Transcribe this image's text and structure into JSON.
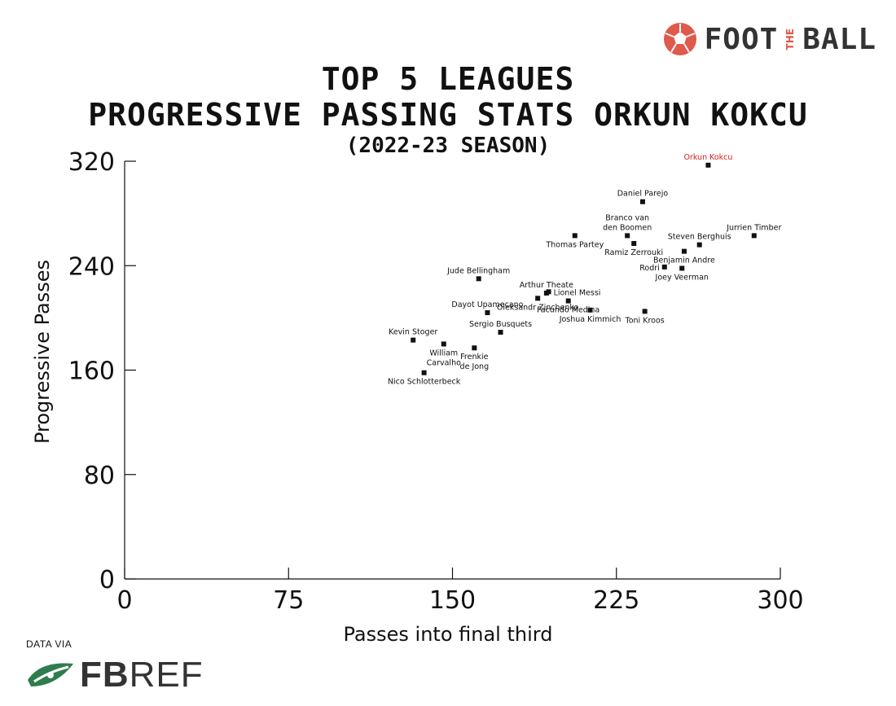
{
  "brand": {
    "name_left": "FOOT",
    "name_mid": "THE",
    "name_right": "BALL",
    "accent_color": "#e0594a",
    "icon": "football-icon"
  },
  "source": {
    "label": "DATA VIA",
    "logo_bold": "FB",
    "logo_light": "REF",
    "icon": "fbref-leaf-icon",
    "color": "#2e7d4f"
  },
  "chart_data": {
    "type": "scatter",
    "title": "TOP 5 LEAGUES",
    "title_line2": "PROGRESSIVE PASSING STATS ORKUN KOKCU",
    "subtitle": "(2022-23 SEASON)",
    "xlabel": "Passes into final third",
    "ylabel": "Progressive Passes",
    "xlim": [
      0,
      300
    ],
    "ylim": [
      0,
      320
    ],
    "xticks": [
      0,
      75,
      150,
      225,
      300
    ],
    "yticks": [
      0,
      80,
      160,
      240,
      320
    ],
    "grid": false,
    "highlight_color": "#d62020",
    "point_color": "#111111",
    "points": [
      {
        "name": "Orkun Kokcu",
        "x": 267,
        "y": 317,
        "highlight": true,
        "label_pos": "top"
      },
      {
        "name": "Daniel Parejo",
        "x": 237,
        "y": 289,
        "label_pos": "top"
      },
      {
        "name": "Branco van den Boomen",
        "lines": [
          "Branco van",
          "den Boomen"
        ],
        "x": 230,
        "y": 263,
        "label_pos": "top"
      },
      {
        "name": "Thomas Partey",
        "x": 206,
        "y": 263,
        "label_pos": "bottom"
      },
      {
        "name": "Jurrien Timber",
        "x": 288,
        "y": 263,
        "label_pos": "top"
      },
      {
        "name": "Steven Berghuis",
        "x": 263,
        "y": 256,
        "label_pos": "top"
      },
      {
        "name": "Ramiz Zerrouki",
        "x": 233,
        "y": 257,
        "label_pos": "bottom"
      },
      {
        "name": "Benjamin Andre",
        "x": 256,
        "y": 251,
        "label_pos": "bottom"
      },
      {
        "name": "Rodri",
        "x": 247,
        "y": 239,
        "label_pos": "left"
      },
      {
        "name": "Joey Veerman",
        "x": 255,
        "y": 238,
        "label_pos": "bottom"
      },
      {
        "name": "Jude Bellingham",
        "x": 162,
        "y": 230,
        "label_pos": "top"
      },
      {
        "name": "Arthur Theate",
        "x": 193,
        "y": 219,
        "label_pos": "top"
      },
      {
        "name": "Lionel Messi",
        "x": 194,
        "y": 220,
        "label_pos": "right"
      },
      {
        "name": "Oleksandr Zinchenko",
        "x": 189,
        "y": 215,
        "label_pos": "bottom"
      },
      {
        "name": "Facundo Medina",
        "x": 203,
        "y": 213,
        "label_pos": "bottom"
      },
      {
        "name": "Dayot Upamecano",
        "x": 166,
        "y": 204,
        "label_pos": "top"
      },
      {
        "name": "Joshua Kimmich",
        "x": 213,
        "y": 206,
        "label_pos": "bottom"
      },
      {
        "name": "Toni Kroos",
        "x": 238,
        "y": 205,
        "label_pos": "bottom"
      },
      {
        "name": "Sergio Busquets",
        "x": 172,
        "y": 189,
        "label_pos": "top"
      },
      {
        "name": "Kevin Stoger",
        "x": 132,
        "y": 183,
        "label_pos": "top"
      },
      {
        "name": "William Carvalho",
        "lines": [
          "William",
          "Carvalho"
        ],
        "x": 146,
        "y": 180,
        "label_pos": "bottom"
      },
      {
        "name": "Frenkie de Jong",
        "lines": [
          "Frenkie",
          "de Jong"
        ],
        "x": 160,
        "y": 177,
        "label_pos": "bottom"
      },
      {
        "name": "Nico Schlotterbeck",
        "x": 137,
        "y": 158,
        "label_pos": "bottom"
      }
    ]
  }
}
